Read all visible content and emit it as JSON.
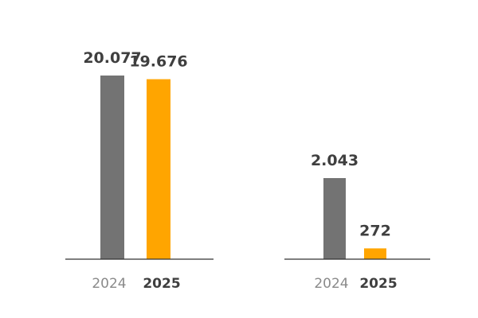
{
  "colors": {
    "prior": "#737373",
    "current": "#FFA500",
    "axis": "#333333"
  },
  "chart_data": [
    {
      "type": "bar",
      "categories": [
        "2024",
        "2025"
      ],
      "values": [
        20077,
        19676
      ],
      "value_labels": [
        "20.077",
        "19.676"
      ],
      "category_styles": [
        "regular",
        "bold"
      ],
      "ylim": [
        0,
        20077
      ],
      "title": "",
      "xlabel": "",
      "ylabel": ""
    },
    {
      "type": "bar",
      "categories": [
        "2024",
        "2025"
      ],
      "values": [
        2043,
        272
      ],
      "value_labels": [
        "2.043",
        "272"
      ],
      "category_styles": [
        "regular",
        "bold"
      ],
      "ylim": [
        0,
        2043
      ],
      "title": "",
      "xlabel": "",
      "ylabel": ""
    }
  ]
}
